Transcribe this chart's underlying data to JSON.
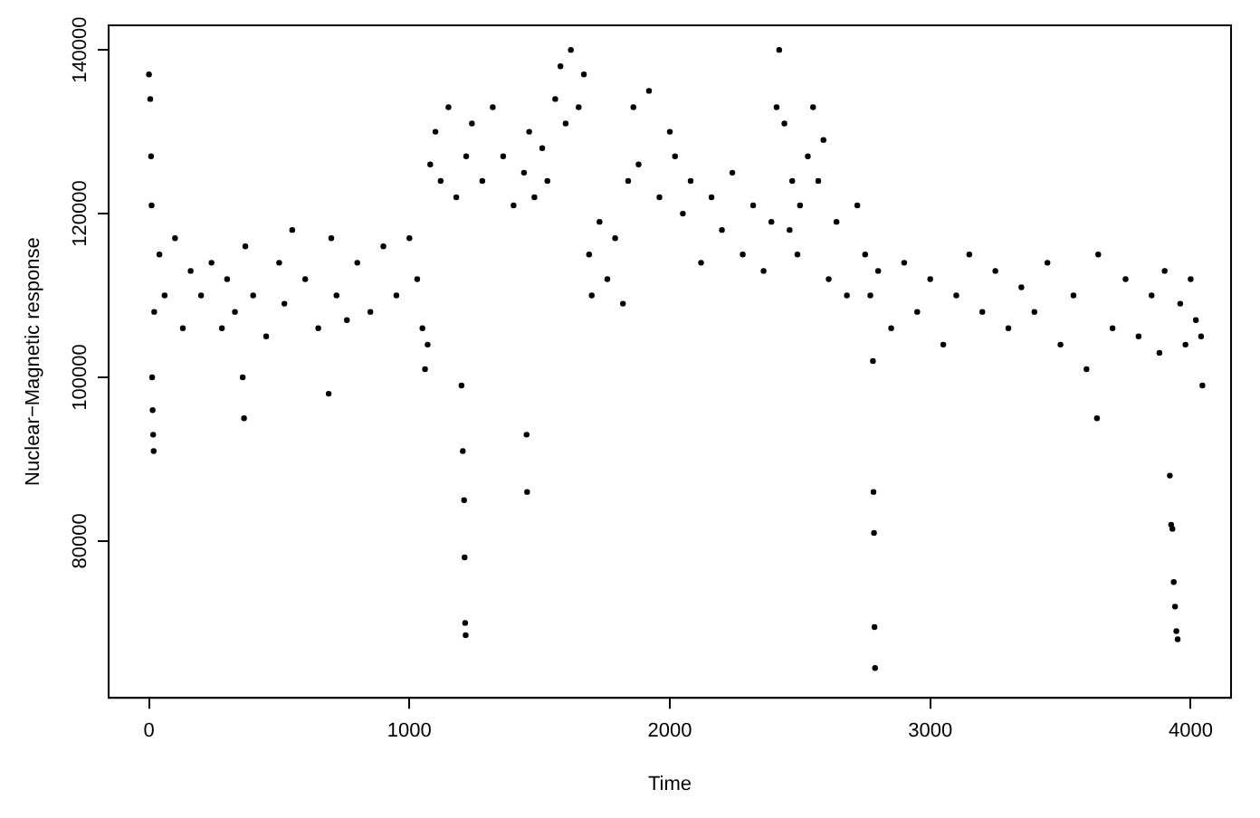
{
  "chart_data": {
    "type": "scatter",
    "xlabel": "Time",
    "ylabel": "Nuclear−Magnetic response",
    "xlim": [
      -155,
      4155
    ],
    "ylim": [
      60850,
      143000
    ],
    "xticks": [
      0,
      1000,
      2000,
      3000,
      4000
    ],
    "yticks": [
      80000,
      100000,
      120000,
      140000
    ],
    "grid": false,
    "legend": false,
    "marker": "circle",
    "series": [
      {
        "color": "#000000",
        "x": [
          0,
          5,
          8,
          10,
          12,
          14,
          16,
          18,
          20,
          40,
          60,
          100,
          130,
          160,
          200,
          240,
          280,
          300,
          330,
          360,
          365,
          370,
          400,
          450,
          500,
          520,
          550,
          600,
          650,
          690,
          700,
          720,
          760,
          800,
          850,
          900,
          950,
          1000,
          1030,
          1050,
          1060,
          1070,
          1080,
          1100,
          1120,
          1150,
          1180,
          1200,
          1205,
          1210,
          1212,
          1214,
          1216,
          1218,
          1240,
          1280,
          1320,
          1360,
          1400,
          1440,
          1450,
          1452,
          1460,
          1480,
          1510,
          1530,
          1560,
          1580,
          1600,
          1620,
          1650,
          1670,
          1690,
          1700,
          1730,
          1760,
          1790,
          1820,
          1840,
          1860,
          1880,
          1920,
          1960,
          2000,
          2020,
          2050,
          2080,
          2120,
          2160,
          2200,
          2240,
          2280,
          2320,
          2360,
          2390,
          2410,
          2420,
          2440,
          2460,
          2470,
          2490,
          2500,
          2530,
          2550,
          2570,
          2590,
          2610,
          2640,
          2680,
          2720,
          2750,
          2770,
          2780,
          2782,
          2784,
          2786,
          2788,
          2800,
          2850,
          2900,
          2950,
          3000,
          3050,
          3100,
          3150,
          3200,
          3250,
          3300,
          3350,
          3400,
          3450,
          3500,
          3550,
          3600,
          3640,
          3645,
          3700,
          3750,
          3800,
          3850,
          3880,
          3900,
          3920,
          3925,
          3930,
          3935,
          3940,
          3945,
          3950,
          3960,
          3980,
          4000,
          4020,
          4040,
          4045
        ],
        "values": [
          137000,
          134000,
          127000,
          121000,
          100000,
          96000,
          93000,
          91000,
          108000,
          115000,
          110000,
          117000,
          106000,
          113000,
          110000,
          114000,
          106000,
          112000,
          108000,
          100000,
          95000,
          116000,
          110000,
          105000,
          114000,
          109000,
          118000,
          112000,
          106000,
          98000,
          117000,
          110000,
          107000,
          114000,
          108000,
          116000,
          110000,
          117000,
          112000,
          106000,
          101000,
          104000,
          126000,
          130000,
          124000,
          133000,
          122000,
          99000,
          91000,
          85000,
          78000,
          70000,
          68500,
          127000,
          131000,
          124000,
          133000,
          127000,
          121000,
          125000,
          93000,
          86000,
          130000,
          122000,
          128000,
          124000,
          134000,
          138000,
          131000,
          140000,
          133000,
          137000,
          115000,
          110000,
          119000,
          112000,
          117000,
          109000,
          124000,
          133000,
          126000,
          135000,
          122000,
          130000,
          127000,
          120000,
          124000,
          114000,
          122000,
          118000,
          125000,
          115000,
          121000,
          113000,
          119000,
          133000,
          140000,
          131000,
          118000,
          124000,
          115000,
          121000,
          127000,
          133000,
          124000,
          129000,
          112000,
          119000,
          110000,
          121000,
          115000,
          110000,
          102000,
          86000,
          81000,
          69500,
          64500,
          113000,
          106000,
          114000,
          108000,
          112000,
          104000,
          110000,
          115000,
          108000,
          113000,
          106000,
          111000,
          108000,
          114000,
          104000,
          110000,
          101000,
          95000,
          115000,
          106000,
          112000,
          105000,
          110000,
          103000,
          113000,
          88000,
          82000,
          81500,
          75000,
          72000,
          69000,
          68000,
          109000,
          104000,
          112000,
          107000,
          105000,
          99000
        ]
      }
    ]
  }
}
